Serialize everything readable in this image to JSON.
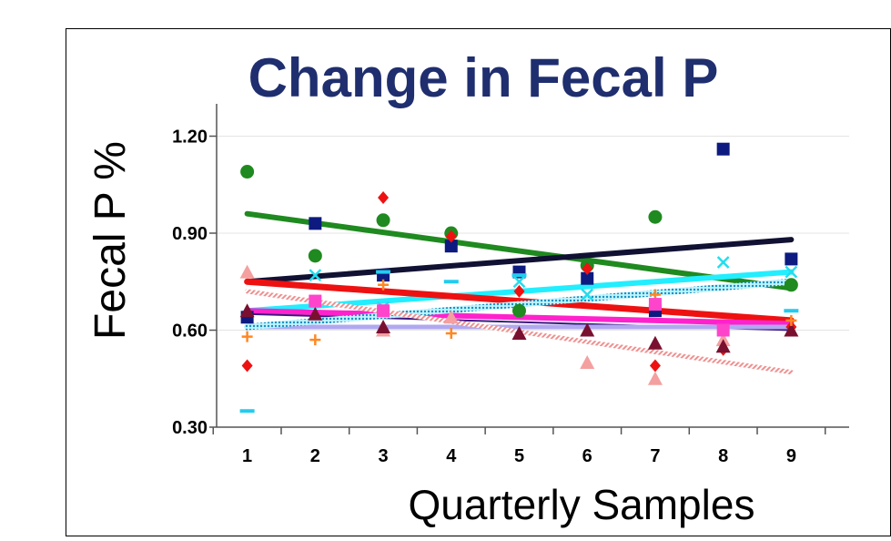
{
  "chart_data": {
    "type": "scatter",
    "title": "Change in Fecal P",
    "xlabel": "Quarterly Samples",
    "ylabel": "Fecal P %",
    "xlim": [
      0.55,
      9.45
    ],
    "ylim": [
      0.3,
      1.3
    ],
    "x_ticks": [
      "1",
      "2",
      "3",
      "4",
      "5",
      "6",
      "7",
      "8",
      "9"
    ],
    "y_ticks": [
      "0.30",
      "0.60",
      "0.90",
      "1.20"
    ],
    "y_tick_values": [
      0.3,
      0.6,
      0.9,
      1.2
    ],
    "grid": "horizontal",
    "legend": "none",
    "series": [
      {
        "marker": "circle",
        "color": "#1f8a1f",
        "points": [
          [
            1,
            1.09
          ],
          [
            2,
            0.83
          ],
          [
            3,
            0.94
          ],
          [
            4,
            0.9
          ],
          [
            5,
            0.66
          ],
          [
            6,
            0.8
          ],
          [
            7,
            0.95
          ],
          [
            9,
            0.74
          ]
        ]
      },
      {
        "marker": "square",
        "color": "#0d1a80",
        "points": [
          [
            1,
            0.64
          ],
          [
            2,
            0.93
          ],
          [
            3,
            0.77
          ],
          [
            4,
            0.86
          ],
          [
            5,
            0.78
          ],
          [
            6,
            0.76
          ],
          [
            7,
            0.66
          ],
          [
            8,
            1.16
          ],
          [
            9,
            0.82
          ]
        ]
      },
      {
        "marker": "diamond",
        "color": "#ee1111",
        "points": [
          [
            1,
            0.49
          ],
          [
            3,
            1.01
          ],
          [
            4,
            0.89
          ],
          [
            5,
            0.72
          ],
          [
            6,
            0.79
          ],
          [
            7,
            0.49
          ],
          [
            8,
            0.54
          ],
          [
            9,
            0.61
          ]
        ]
      },
      {
        "marker": "triangle",
        "color": "#f4a0a0",
        "points": [
          [
            1,
            0.78
          ],
          [
            3,
            0.6
          ],
          [
            4,
            0.64
          ],
          [
            6,
            0.5
          ],
          [
            7,
            0.45
          ],
          [
            8,
            0.57
          ]
        ]
      },
      {
        "marker": "triangle",
        "color": "#7a1030",
        "points": [
          [
            1,
            0.66
          ],
          [
            2,
            0.65
          ],
          [
            3,
            0.61
          ],
          [
            5,
            0.59
          ],
          [
            6,
            0.6
          ],
          [
            7,
            0.56
          ],
          [
            8,
            0.55
          ],
          [
            9,
            0.6
          ]
        ]
      },
      {
        "marker": "x",
        "color": "#22ddee",
        "points": [
          [
            2,
            0.77
          ],
          [
            3,
            0.67
          ],
          [
            5,
            0.75
          ],
          [
            6,
            0.71
          ],
          [
            7,
            0.68
          ],
          [
            8,
            0.81
          ],
          [
            9,
            0.78
          ]
        ]
      },
      {
        "marker": "dash",
        "color": "#22ccee",
        "points": [
          [
            1,
            0.35
          ],
          [
            3,
            0.78
          ],
          [
            4,
            0.75
          ],
          [
            5,
            0.77
          ],
          [
            9,
            0.66
          ]
        ]
      },
      {
        "marker": "plus",
        "color": "#ff8822",
        "points": [
          [
            1,
            0.58
          ],
          [
            2,
            0.57
          ],
          [
            3,
            0.74
          ],
          [
            4,
            0.59
          ],
          [
            7,
            0.71
          ],
          [
            9,
            0.63
          ]
        ]
      },
      {
        "marker": "square",
        "color": "#ff44cc",
        "points": [
          [
            2,
            0.69
          ],
          [
            3,
            0.66
          ],
          [
            7,
            0.68
          ],
          [
            8,
            0.6
          ]
        ]
      }
    ],
    "trendlines": [
      {
        "color": "#1f8a1f",
        "style": "solid",
        "width": 6,
        "from": [
          1,
          0.96
        ],
        "to": [
          9,
          0.73
        ]
      },
      {
        "color": "#111133",
        "style": "solid",
        "width": 6,
        "from": [
          1,
          0.75
        ],
        "to": [
          9,
          0.88
        ]
      },
      {
        "color": "#22eeff",
        "style": "solid",
        "width": 6,
        "from": [
          1,
          0.66
        ],
        "to": [
          9,
          0.78
        ]
      },
      {
        "color": "#ee1111",
        "style": "solid",
        "width": 7,
        "from": [
          1,
          0.75
        ],
        "to": [
          9,
          0.63
        ]
      },
      {
        "color": "#ff22cc",
        "style": "solid",
        "width": 6,
        "from": [
          1,
          0.66
        ],
        "to": [
          9,
          0.62
        ]
      },
      {
        "color": "#ff8822",
        "style": "solid",
        "width": 3,
        "from": [
          1,
          0.61
        ],
        "to": [
          9,
          0.61
        ]
      },
      {
        "color": "#3a1a80",
        "style": "solid",
        "width": 2,
        "from": [
          1,
          0.65
        ],
        "to": [
          9,
          0.6
        ]
      },
      {
        "color": "#b0a8f0",
        "style": "solid",
        "width": 5,
        "from": [
          1,
          0.61
        ],
        "to": [
          9,
          0.61
        ]
      },
      {
        "color": "#22aadd",
        "style": "dotted",
        "width": 7,
        "from": [
          1,
          0.61
        ],
        "to": [
          9,
          0.75
        ]
      },
      {
        "color": "#f4a0a0",
        "style": "hatched",
        "width": 5,
        "from": [
          1,
          0.72
        ],
        "to": [
          9,
          0.47
        ]
      }
    ]
  }
}
